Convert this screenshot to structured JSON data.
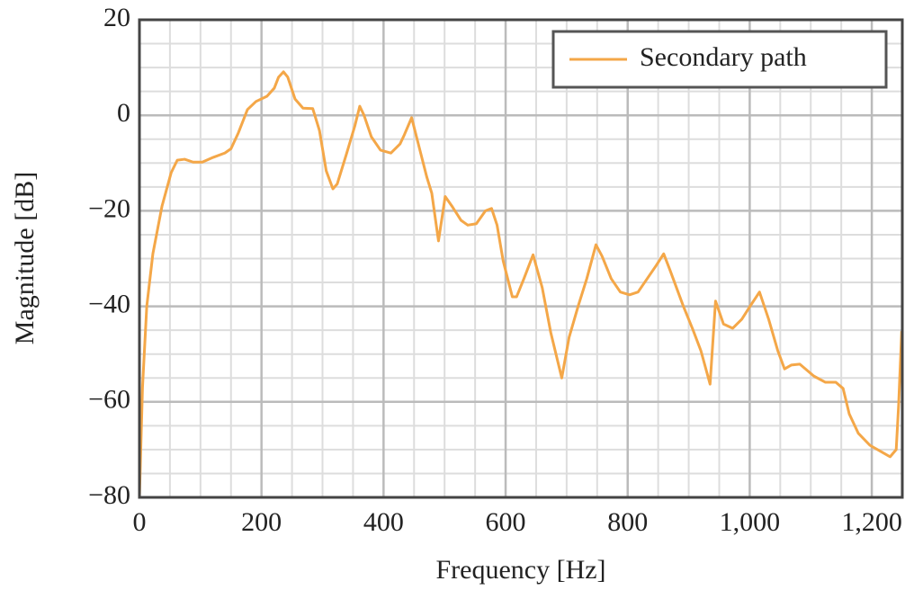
{
  "chart_data": {
    "type": "line",
    "x_label": "Frequency [Hz]",
    "y_label": "Magnitude [dB]",
    "xlim": [
      0,
      1250
    ],
    "ylim": [
      -80,
      20
    ],
    "xticks": [
      0,
      200,
      400,
      600,
      800,
      {
        "value": 1000,
        "label": "1,000"
      },
      {
        "value": 1200,
        "label": "1,200"
      }
    ],
    "yticks": [
      {
        "value": -80,
        "label": "−80"
      },
      {
        "value": -60,
        "label": "−60"
      },
      {
        "value": -40,
        "label": "−40"
      },
      {
        "value": -20,
        "label": "−20"
      },
      0,
      20
    ],
    "grid": true,
    "minor_grid": true,
    "legend": "upper right",
    "x": [
      0,
      5,
      12,
      22,
      37,
      52,
      62,
      74,
      88,
      103,
      121,
      140,
      150,
      162,
      177,
      191,
      209,
      221,
      228,
      236,
      243,
      255,
      268,
      284,
      295,
      306,
      317,
      324,
      339,
      353,
      361,
      368,
      380,
      395,
      412,
      427,
      434,
      446,
      457,
      471,
      479,
      490,
      501,
      513,
      527,
      538,
      552,
      567,
      577,
      586,
      596,
      611,
      618,
      630,
      645,
      660,
      674,
      692,
      704,
      719,
      733,
      744,
      748,
      758,
      773,
      788,
      803,
      817,
      832,
      847,
      859,
      869,
      891,
      906,
      920,
      935,
      944,
      957,
      972,
      987,
      1001,
      1016,
      1031,
      1046,
      1057,
      1068,
      1082,
      1105,
      1124,
      1141,
      1153,
      1163,
      1178,
      1197,
      1215,
      1230,
      1240,
      1244,
      1249
    ],
    "series": [
      {
        "name": "Secondary path",
        "color": "#f4a748",
        "values": [
          -80,
          -57,
          -40,
          -29,
          -19,
          -12,
          -9.4,
          -9.2,
          -9.8,
          -9.8,
          -8.8,
          -7.9,
          -7,
          -3.7,
          1.2,
          2.9,
          4,
          5.7,
          8,
          9.1,
          8,
          3.4,
          1.5,
          1.4,
          -3.2,
          -11.6,
          -15.4,
          -14.4,
          -8.2,
          -2.2,
          1.9,
          0,
          -4.5,
          -7.3,
          -7.9,
          -6,
          -4.1,
          -0.5,
          -6,
          -13,
          -16.3,
          -26.3,
          -17,
          -19.2,
          -22,
          -23,
          -22.7,
          -20,
          -19.5,
          -23,
          -30.5,
          -38,
          -38,
          -34.2,
          -29.2,
          -36.1,
          -45.5,
          -55,
          -46.5,
          -39.9,
          -34.2,
          -29,
          -27.1,
          -29.5,
          -34.2,
          -37,
          -37.6,
          -37,
          -34.2,
          -31.4,
          -29,
          -32.3,
          -39.9,
          -44.6,
          -49.3,
          -56.3,
          -38.9,
          -43.7,
          -44.6,
          -42.7,
          -39.9,
          -37,
          -42.7,
          -49.3,
          -53.1,
          -52.3,
          -52.1,
          -54.6,
          -55.9,
          -55.9,
          -57.2,
          -62.5,
          -66.6,
          -69.1,
          -70.4,
          -71.5,
          -70,
          -60.6,
          -45.2
        ]
      }
    ]
  }
}
